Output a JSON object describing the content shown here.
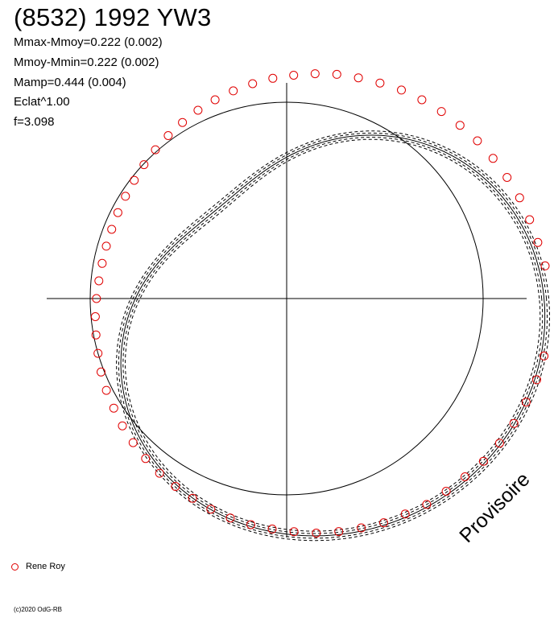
{
  "header": {
    "title": "(8532) 1992 YW3",
    "stats": [
      "Mmax-Mmoy=0.222 (0.002)",
      "Mmoy-Mmin=0.222 (0.002)",
      "Mamp=0.444 (0.004)",
      "Eclat^1.00",
      "f=3.098"
    ]
  },
  "watermark": "Provisoire",
  "legend": {
    "label": "Rene Roy",
    "color": "#e00000"
  },
  "copyright": "(c)2020 OdG-RB",
  "chart_data": {
    "type": "scatter",
    "projection": "polar",
    "title": "(8532) 1992 YW3",
    "grid": true,
    "reference_circle_radius": 0.5,
    "fit_curve": {
      "note_values": "mean brightness 0.5, amplitude 0.444",
      "fourier_terms": [
        {
          "order": 1,
          "cos": 0.135,
          "sin": -0.12
        },
        {
          "order": 2,
          "cos": 0.02,
          "sin": 0.03
        }
      ],
      "mean": 0.5,
      "envelope_offsets": [
        -0.012,
        -0.006,
        0.006,
        0.012
      ]
    },
    "series": [
      {
        "name": "Rene Roy",
        "marker": "open-circle",
        "color": "#e00000",
        "points": [
          [
            0.02,
            0.663
          ],
          [
            0.035,
            0.655
          ],
          [
            0.05,
            0.65
          ],
          [
            0.065,
            0.646
          ],
          [
            0.08,
            0.64
          ],
          [
            0.095,
            0.635
          ],
          [
            0.11,
            0.63
          ],
          [
            0.125,
            0.624
          ],
          [
            0.14,
            0.618
          ],
          [
            0.155,
            0.612
          ],
          [
            0.17,
            0.606
          ],
          [
            0.185,
            0.598
          ],
          [
            0.2,
            0.591
          ],
          [
            0.215,
            0.585
          ],
          [
            0.23,
            0.577
          ],
          [
            0.245,
            0.569
          ],
          [
            0.26,
            0.562
          ],
          [
            0.275,
            0.554
          ],
          [
            0.29,
            0.546
          ],
          [
            0.305,
            0.538
          ],
          [
            0.32,
            0.53
          ],
          [
            0.335,
            0.521
          ],
          [
            0.35,
            0.513
          ],
          [
            0.365,
            0.505
          ],
          [
            0.38,
            0.498
          ],
          [
            0.395,
            0.491
          ],
          [
            0.41,
            0.486
          ],
          [
            0.425,
            0.482
          ],
          [
            0.44,
            0.479
          ],
          [
            0.455,
            0.478
          ],
          [
            0.47,
            0.478
          ],
          [
            0.485,
            0.48
          ],
          [
            0.5,
            0.484
          ],
          [
            0.515,
            0.489
          ],
          [
            0.53,
            0.494
          ],
          [
            0.545,
            0.5
          ],
          [
            0.56,
            0.508
          ],
          [
            0.575,
            0.515
          ],
          [
            0.59,
            0.521
          ],
          [
            0.605,
            0.529
          ],
          [
            0.62,
            0.536
          ],
          [
            0.635,
            0.543
          ],
          [
            0.65,
            0.55
          ],
          [
            0.665,
            0.556
          ],
          [
            0.68,
            0.562
          ],
          [
            0.695,
            0.57
          ],
          [
            0.71,
            0.577
          ],
          [
            0.725,
            0.583
          ],
          [
            0.74,
            0.588
          ],
          [
            0.755,
            0.594
          ],
          [
            0.77,
            0.602
          ],
          [
            0.785,
            0.608
          ],
          [
            0.8,
            0.614
          ],
          [
            0.815,
            0.622
          ],
          [
            0.83,
            0.626
          ],
          [
            0.845,
            0.634
          ],
          [
            0.86,
            0.637
          ],
          [
            0.875,
            0.642
          ],
          [
            0.89,
            0.65
          ],
          [
            0.905,
            0.655
          ],
          [
            0.92,
            0.66
          ],
          [
            0.935,
            0.664
          ],
          [
            0.95,
            0.669
          ],
          [
            0.965,
            0.671
          ],
          [
            0.98,
            0.67
          ]
        ]
      }
    ]
  }
}
